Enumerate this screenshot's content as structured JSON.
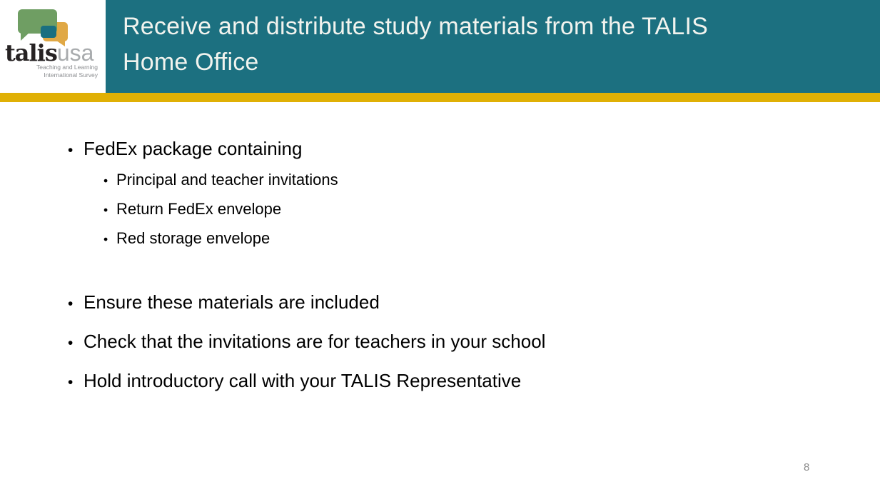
{
  "slide": {
    "title_lines": [
      "Receive and distribute study materials from the TALIS",
      "Home Office"
    ],
    "page_number": "8"
  },
  "logo": {
    "wordmark_primary": "talis",
    "wordmark_secondary": "usa",
    "tagline_lines": [
      "Teaching and Learning",
      "International Survey"
    ]
  },
  "bullets": {
    "marker": "•",
    "items": [
      {
        "level": 1,
        "text": "FedEx package containing"
      },
      {
        "level": 2,
        "text": "Principal and teacher invitations"
      },
      {
        "level": 2,
        "text": "Return FedEx envelope"
      },
      {
        "level": 2,
        "text": "Red storage envelope"
      },
      {
        "level": 1,
        "text": "Ensure these materials are included",
        "gap_before": true
      },
      {
        "level": 1,
        "text": "Check that the invitations are for teachers in your school"
      },
      {
        "level": 1,
        "text": "Hold introductory call with your TALIS Representative"
      }
    ]
  },
  "colors": {
    "header_teal": "#1c7080",
    "accent_gold": "#e0b005",
    "logo_green": "#6f9e63",
    "logo_orange": "#e0a845",
    "logo_teal": "#1a6f80",
    "body_text": "#000000",
    "page_number_gray": "#8b8b8b"
  }
}
